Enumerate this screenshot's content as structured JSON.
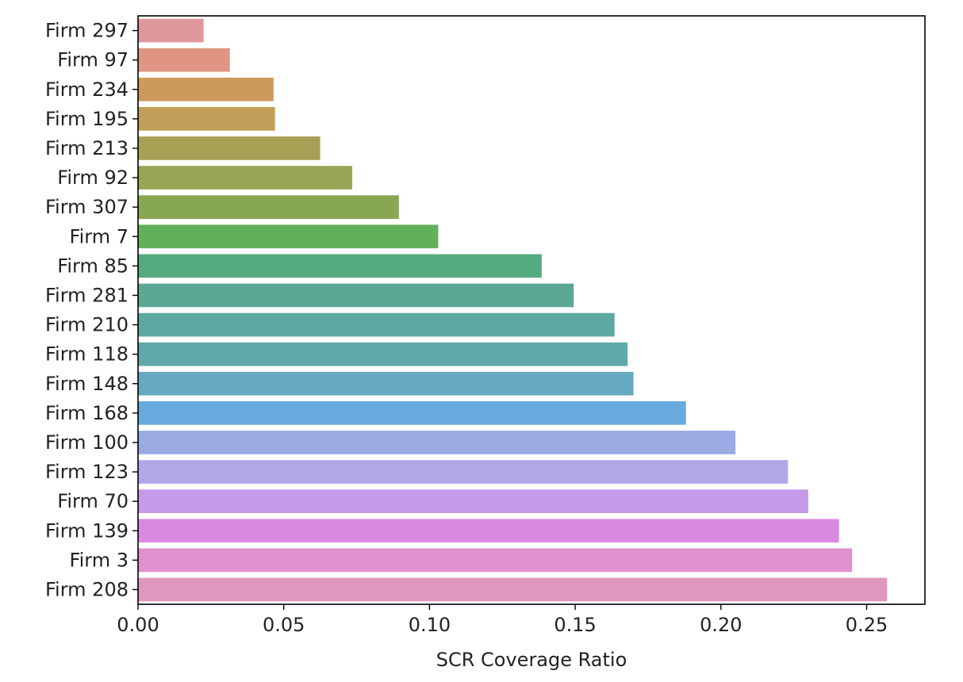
{
  "chart_data": {
    "type": "bar",
    "orientation": "horizontal",
    "title": "",
    "xlabel": "SCR Coverage Ratio",
    "ylabel": "",
    "xlim": [
      0.0,
      0.27
    ],
    "x_ticks": [
      0.0,
      0.05,
      0.1,
      0.15,
      0.2,
      0.25
    ],
    "x_tick_labels": [
      "0.00",
      "0.05",
      "0.10",
      "0.15",
      "0.20",
      "0.25"
    ],
    "grid": false,
    "categories": [
      "Firm 297",
      "Firm 97",
      "Firm 234",
      "Firm 195",
      "Firm 213",
      "Firm 92",
      "Firm 307",
      "Firm 7",
      "Firm 85",
      "Firm 281",
      "Firm 210",
      "Firm 118",
      "Firm 148",
      "Firm 168",
      "Firm 100",
      "Firm 123",
      "Firm 70",
      "Firm 139",
      "Firm 3",
      "Firm 208"
    ],
    "values": [
      0.0225,
      0.0315,
      0.0465,
      0.047,
      0.0625,
      0.0735,
      0.0895,
      0.103,
      0.1385,
      0.1495,
      0.1635,
      0.168,
      0.17,
      0.188,
      0.205,
      0.223,
      0.23,
      0.2405,
      0.245,
      0.257
    ],
    "colors": [
      "#e0979c",
      "#df9582",
      "#cc9a5b",
      "#c29f59",
      "#a89f55",
      "#97a655",
      "#87a752",
      "#62b05a",
      "#55ab7f",
      "#5ba895",
      "#5da8a0",
      "#5fa9aa",
      "#64a9c0",
      "#67aade",
      "#9aaae2",
      "#b3a6e8",
      "#c59ae9",
      "#da89e2",
      "#e08fcf",
      "#df97bf"
    ]
  }
}
